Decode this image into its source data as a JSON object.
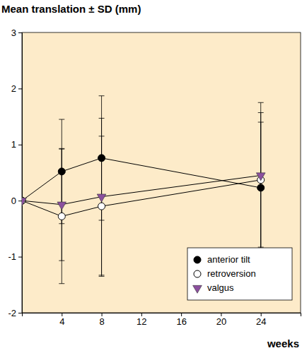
{
  "chart_data": {
    "type": "line",
    "title": "Mean translation ± SD (mm)",
    "xlabel": "weeks",
    "x": [
      0,
      4,
      8,
      24
    ],
    "xlim": [
      0,
      28
    ],
    "xticks": [
      4,
      8,
      12,
      16,
      20,
      24
    ],
    "ylim": [
      -2,
      3
    ],
    "yticks": [
      -2,
      -1,
      0,
      1,
      2,
      3
    ],
    "legend": "lower right",
    "series": [
      {
        "name": "anterior tilt",
        "color": "#000000",
        "marker": "circle",
        "values": [
          0,
          0.52,
          0.76,
          0.23
        ],
        "errors": [
          0,
          0.93,
          1.11,
          1.17
        ]
      },
      {
        "name": "retroversion",
        "color": "#ffffff",
        "marker": "circle",
        "values": [
          0,
          -0.28,
          -0.1,
          0.37
        ],
        "errors": [
          0,
          1.2,
          1.25,
          1.2
        ]
      },
      {
        "name": "valgus",
        "color": "#8b4f9e",
        "marker": "triangle",
        "values": [
          0,
          -0.07,
          0.07,
          0.45
        ],
        "errors": [
          0,
          1.0,
          1.4,
          1.3
        ]
      }
    ]
  }
}
